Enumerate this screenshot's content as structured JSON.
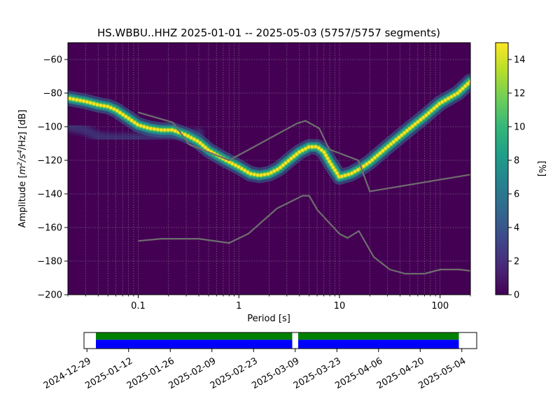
{
  "chart_data": [
    {
      "type": "heatmap",
      "title": "HS.WBBU..HHZ   2025-01-01 -- 2025-05-03  (5757/5757 segments)",
      "xlabel": "Period [s]",
      "ylabel_prefix": "Amplitude [",
      "ylabel_unit_main": "m",
      "ylabel_unit_sup1": "2",
      "ylabel_unit_mid": "/s",
      "ylabel_unit_sup2": "4",
      "ylabel_unit_end": "/Hz] [dB]",
      "x_scale": "log",
      "xlim": [
        0.02,
        200
      ],
      "ylim": [
        -200,
        -50
      ],
      "x_ticks": [
        {
          "value": 0.1,
          "label": "0.1"
        },
        {
          "value": 1,
          "label": "1"
        },
        {
          "value": 10,
          "label": "10"
        },
        {
          "value": 100,
          "label": "100"
        }
      ],
      "y_ticks": [
        {
          "value": -60,
          "label": "−60"
        },
        {
          "value": -80,
          "label": "−80"
        },
        {
          "value": -100,
          "label": "−100"
        },
        {
          "value": -120,
          "label": "−120"
        },
        {
          "value": -140,
          "label": "−140"
        },
        {
          "value": -160,
          "label": "−160"
        },
        {
          "value": -180,
          "label": "−180"
        },
        {
          "value": -200,
          "label": "−200"
        }
      ],
      "grid": true,
      "background_color": "#440154",
      "psd_ridge": {
        "x": [
          0.02,
          0.03,
          0.04,
          0.05,
          0.06,
          0.08,
          0.1,
          0.13,
          0.17,
          0.22,
          0.3,
          0.4,
          0.5,
          0.65,
          0.8,
          1.0,
          1.3,
          1.6,
          2.0,
          2.5,
          3.0,
          4.0,
          5.0,
          6.0,
          7.0,
          8.0,
          10,
          13,
          16,
          20,
          30,
          50,
          70,
          100,
          150,
          200
        ],
        "y": [
          -83,
          -85,
          -87,
          -88,
          -90,
          -95,
          -99,
          -101,
          -102,
          -102,
          -105,
          -109,
          -114,
          -118,
          -121,
          -124,
          -128,
          -129,
          -128,
          -125,
          -121,
          -115,
          -112,
          -112,
          -115,
          -121,
          -130,
          -128,
          -125,
          -121,
          -112,
          -101,
          -94,
          -86,
          -80,
          -73
        ]
      },
      "psd_faint_band": {
        "x": [
          0.02,
          0.03,
          0.04,
          0.06,
          0.1,
          0.2,
          0.4
        ],
        "y": [
          -100,
          -102,
          -106,
          -107,
          -107,
          -106,
          -104
        ]
      },
      "noise_model_high": {
        "x": [
          0.1,
          0.22,
          0.32,
          0.8,
          3.8,
          4.6,
          6.3,
          7.9,
          15.4,
          20,
          200
        ],
        "y": [
          -91.5,
          -97.4,
          -110.5,
          -120,
          -98,
          -96.5,
          -101,
          -113.5,
          -120,
          -138.5,
          -128.5
        ]
      },
      "noise_model_low": {
        "x": [
          0.1,
          0.17,
          0.4,
          0.8,
          1.24,
          2.4,
          4.3,
          5.0,
          6.0,
          10,
          12,
          15.6,
          21.9,
          31.6,
          45,
          70,
          101,
          154,
          200
        ],
        "y": [
          -168,
          -166.7,
          -166.7,
          -169.2,
          -163.7,
          -148.6,
          -141.1,
          -141.1,
          -149.4,
          -163.8,
          -166.2,
          -162.1,
          -177.5,
          -185,
          -187.5,
          -187.5,
          -185,
          -185,
          -185.8
        ]
      }
    },
    {
      "type": "colorbar",
      "label": "[%]",
      "range": [
        0,
        15
      ],
      "ticks": [
        {
          "value": 0,
          "label": "0"
        },
        {
          "value": 2,
          "label": "2"
        },
        {
          "value": 4,
          "label": "4"
        },
        {
          "value": 6,
          "label": "6"
        },
        {
          "value": 8,
          "label": "8"
        },
        {
          "value": 10,
          "label": "10"
        },
        {
          "value": 12,
          "label": "12"
        },
        {
          "value": 14,
          "label": "14"
        }
      ],
      "colormap": [
        "#440154",
        "#482878",
        "#3e4989",
        "#31688e",
        "#26828e",
        "#1f9e89",
        "#35b779",
        "#6ece58",
        "#b5de2b",
        "#fde725"
      ]
    },
    {
      "type": "timeline",
      "x_range": [
        "2024-12-28",
        "2025-05-09"
      ],
      "coverage_color_top": "#008000",
      "coverage_color_bottom": "#0000ff",
      "coverage": [
        {
          "start": "2025-01-01",
          "end": "2025-03-08"
        },
        {
          "start": "2025-03-10",
          "end": "2025-05-03"
        }
      ],
      "ticks": [
        {
          "date": "2024-12-29",
          "label": "2024-12-29"
        },
        {
          "date": "2025-01-12",
          "label": "2025-01-12"
        },
        {
          "date": "2025-01-26",
          "label": "2025-01-26"
        },
        {
          "date": "2025-02-09",
          "label": "2025-02-09"
        },
        {
          "date": "2025-02-23",
          "label": "2025-02-23"
        },
        {
          "date": "2025-03-09",
          "label": "2025-03-09"
        },
        {
          "date": "2025-03-23",
          "label": "2025-03-23"
        },
        {
          "date": "2025-04-06",
          "label": "2025-04-06"
        },
        {
          "date": "2025-04-20",
          "label": "2025-04-20"
        },
        {
          "date": "2025-05-04",
          "label": "2025-05-04"
        }
      ]
    }
  ]
}
